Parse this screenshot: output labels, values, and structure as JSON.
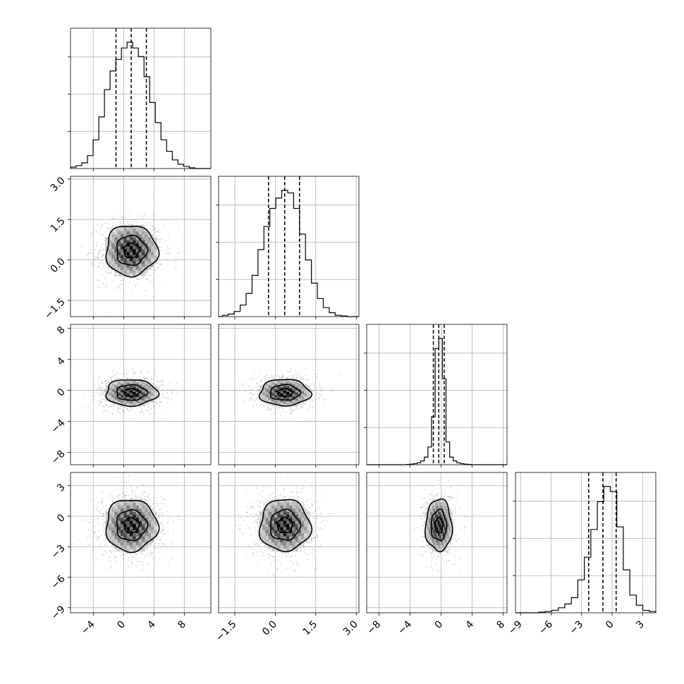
{
  "chart_data": {
    "type": "corner",
    "parameters": [
      {
        "range": [
          -7.0,
          11.5
        ],
        "ticks": [
          -4,
          0,
          4,
          8
        ],
        "tick_labels": [
          "−4",
          "0",
          "4",
          "8"
        ],
        "mean": 1.0,
        "sd": 2.0,
        "quantiles": [
          -1.0,
          1.0,
          3.0
        ]
      },
      {
        "range": [
          -2.1,
          3.1
        ],
        "ticks": [
          -1.5,
          0.0,
          1.5,
          3.0
        ],
        "tick_labels": [
          "−1.5",
          "0.0",
          "1.5",
          "3.0"
        ],
        "mean": 0.35,
        "sd": 0.55,
        "quantiles": [
          -0.25,
          0.35,
          0.9
        ]
      },
      {
        "range": [
          -9.6,
          8.5
        ],
        "ticks": [
          -8,
          -4,
          0,
          4,
          8
        ],
        "tick_labels": [
          "−8",
          "−4",
          "0",
          "4",
          "8"
        ],
        "mean": -0.3,
        "sd": 1.0,
        "quantiles": [
          -1.0,
          -0.3,
          0.4
        ]
      },
      {
        "range": [
          -9.5,
          4.3
        ],
        "ticks": [
          -9,
          -6,
          -3,
          0,
          3
        ],
        "tick_labels": [
          "−9",
          "−6",
          "−3",
          "0",
          "3"
        ],
        "mean": -0.9,
        "sd": 1.5,
        "quantiles": [
          -2.3,
          -0.9,
          0.4
        ]
      }
    ],
    "histograms": [
      {
        "param": 0,
        "values": [
          1,
          2,
          4,
          9,
          20,
          36,
          55,
          68,
          76,
          84,
          88,
          84,
          78,
          64,
          46,
          32,
          20,
          12,
          6,
          3,
          1.5,
          0.5
        ]
      },
      {
        "param": 1,
        "values": [
          1,
          2,
          4,
          9,
          18,
          32,
          52,
          70,
          84,
          92,
          98,
          96,
          84,
          64,
          44,
          26,
          14,
          7,
          3,
          1,
          0.5
        ]
      },
      {
        "param": 2,
        "values": [
          0.2,
          0.4,
          0.8,
          1.5,
          3,
          6,
          14,
          38,
          92,
          100,
          68,
          18,
          6,
          3,
          1.5,
          0.8,
          0.4,
          0.2
        ]
      },
      {
        "param": 3,
        "values": [
          0.5,
          1,
          2,
          4,
          7,
          12,
          26,
          44,
          66,
          88,
          100,
          96,
          68,
          34,
          14,
          6,
          2,
          1
        ]
      }
    ],
    "joint_panels": [
      {
        "x": 0,
        "y": 1,
        "n_samples": 1200,
        "contour_levels": [
          0.39,
          0.86,
          0.99
        ]
      },
      {
        "x": 0,
        "y": 2,
        "n_samples": 1000,
        "contour_levels": [
          0.39,
          0.86,
          0.99
        ]
      },
      {
        "x": 1,
        "y": 2,
        "n_samples": 1000,
        "contour_levels": [
          0.39,
          0.86,
          0.99
        ]
      },
      {
        "x": 0,
        "y": 3,
        "n_samples": 1200,
        "contour_levels": [
          0.39,
          0.86,
          0.99
        ]
      },
      {
        "x": 1,
        "y": 3,
        "n_samples": 1200,
        "contour_levels": [
          0.39,
          0.86,
          0.99
        ]
      },
      {
        "x": 2,
        "y": 3,
        "n_samples": 900,
        "contour_levels": [
          0.39,
          0.86,
          0.99
        ]
      }
    ],
    "grid": true
  }
}
